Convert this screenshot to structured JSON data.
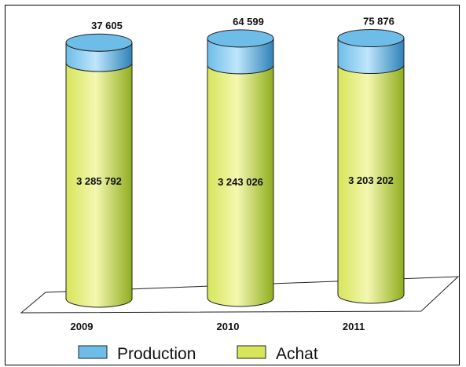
{
  "chart_data": {
    "type": "bar",
    "style": "3d-stacked-cylinder",
    "categories": [
      "2009",
      "2010",
      "2011"
    ],
    "series": [
      {
        "name": "Achat",
        "values": [
          3285792,
          3243026,
          3203202
        ],
        "value_labels": [
          "3 285 792",
          "3 243 026",
          "3 203 202"
        ]
      },
      {
        "name": "Production",
        "values": [
          37605,
          64599,
          75876
        ],
        "value_labels": [
          "37 605",
          "64 599",
          "75 876"
        ]
      }
    ],
    "legend_position": "bottom",
    "grid": false
  },
  "colors": {
    "achat_light": "#f4f7b0",
    "achat_mid": "#d6e55a",
    "achat_dark": "#8fae1e",
    "production_light": "#bfe6fb",
    "production_mid": "#6ebde9",
    "production_dark": "#2f82b8",
    "floor": "#ffffff",
    "stroke": "#222222"
  }
}
